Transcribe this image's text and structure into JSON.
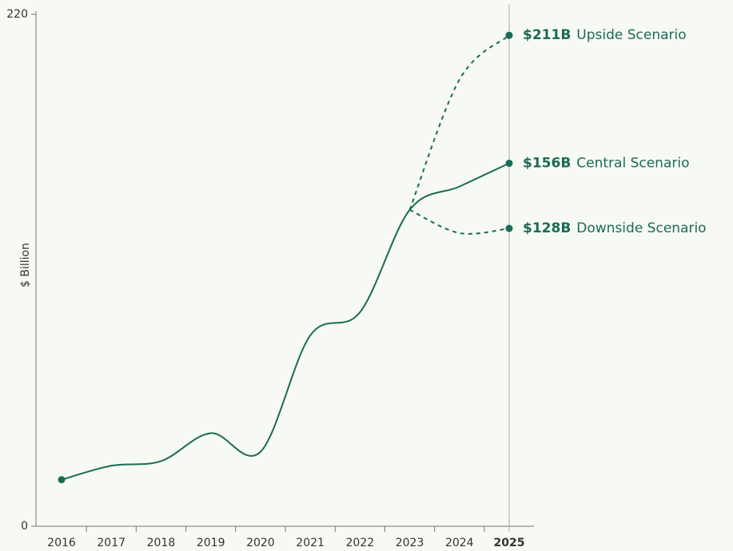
{
  "chart_data": {
    "type": "line",
    "y_label": "$ Billion",
    "categories": [
      "2016",
      "2017",
      "2018",
      "2019",
      "2020",
      "2021",
      "2022",
      "2023",
      "2024",
      "2025"
    ],
    "ylim": [
      0,
      220
    ],
    "yticks": [
      0,
      220
    ],
    "series": [
      {
        "name": "Central Scenario",
        "color": "#1a6b55",
        "dashed": false,
        "values": [
          20,
          26,
          28,
          40,
          32,
          82,
          92,
          136,
          146,
          156
        ],
        "value_labels": [
          null,
          null,
          null,
          null,
          null,
          null,
          null,
          null,
          null,
          "$156B"
        ]
      },
      {
        "name": "Upside Scenario",
        "color": "#1a6b55",
        "dashed": true,
        "values": [
          null,
          null,
          null,
          null,
          null,
          null,
          null,
          136,
          192,
          211
        ],
        "value_labels": [
          null,
          null,
          null,
          null,
          null,
          null,
          null,
          null,
          null,
          "$211B"
        ]
      },
      {
        "name": "Downside Scenario",
        "color": "#1a6b55",
        "dashed": true,
        "values": [
          null,
          null,
          null,
          null,
          null,
          null,
          null,
          136,
          126,
          128
        ],
        "value_labels": [
          null,
          null,
          null,
          null,
          null,
          null,
          null,
          null,
          null,
          "$128B"
        ]
      }
    ]
  }
}
